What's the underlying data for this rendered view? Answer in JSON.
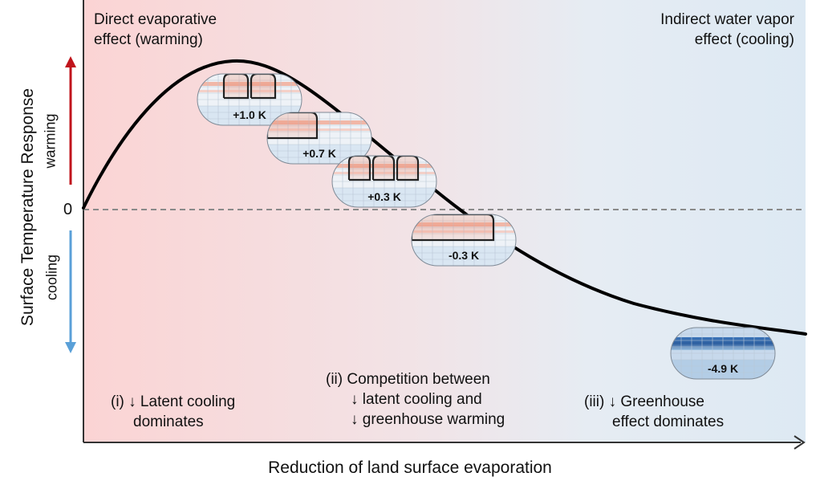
{
  "labels": {
    "direct_effect": [
      "Direct evaporative",
      "effect (warming)"
    ],
    "indirect_effect": [
      "Indirect water vapor",
      "effect (cooling)"
    ],
    "y_axis": "Surface Temperature Response",
    "x_axis": "Reduction of land surface evaporation",
    "warming": "warming",
    "cooling": "cooling",
    "zero": "0"
  },
  "regimes": [
    {
      "lines": [
        "(i) ↓ Latent cooling",
        "dominates"
      ]
    },
    {
      "lines": [
        "(ii) Competition between",
        "↓ latent cooling and",
        "↓ greenhouse warming"
      ]
    },
    {
      "lines": [
        "(iii) ↓ Greenhouse",
        "effect dominates"
      ]
    }
  ],
  "maps": [
    {
      "label": "+1.0 K",
      "sector": "two-sectors",
      "tone": "warm"
    },
    {
      "label": "+0.7 K",
      "sector": "one-sector-left",
      "tone": "warm"
    },
    {
      "label": "+0.3 K",
      "sector": "three-sectors",
      "tone": "warm"
    },
    {
      "label": "-0.3 K",
      "sector": "one-sector-wide",
      "tone": "mixed"
    },
    {
      "label": "-4.9 K",
      "sector": "none",
      "tone": "cold"
    }
  ],
  "colors": {
    "background_left": "#fbd6d6",
    "background_right": "#dfebf4",
    "warming_arrow": "#c0141c",
    "cooling_arrow": "#5aa0d8",
    "curve": "#000000",
    "zero_line": "#888888"
  }
}
